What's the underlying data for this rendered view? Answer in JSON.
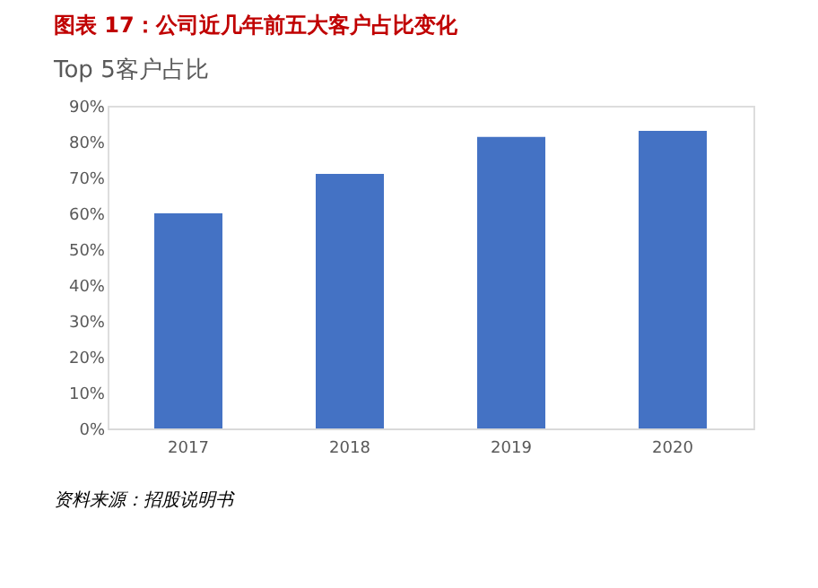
{
  "chart_data": {
    "type": "bar",
    "title": "图表 17：公司近几年前五大客户占比变化",
    "subtitle": "Top 5客户占比",
    "categories": [
      "2017",
      "2018",
      "2019",
      "2020"
    ],
    "values": [
      60,
      71,
      81.3,
      83
    ],
    "color": "#4472c4",
    "ylim": [
      0,
      90
    ],
    "yticks": [
      {
        "value": 0,
        "label": "0%"
      },
      {
        "value": 10,
        "label": "10%"
      },
      {
        "value": 20,
        "label": "20%"
      },
      {
        "value": 30,
        "label": "30%"
      },
      {
        "value": 40,
        "label": "40%"
      },
      {
        "value": 50,
        "label": "50%"
      },
      {
        "value": 60,
        "label": "60%"
      },
      {
        "value": 70,
        "label": "70%"
      },
      {
        "value": 80,
        "label": "80%"
      },
      {
        "value": 90,
        "label": "90%"
      }
    ],
    "grid": false,
    "annotations": [
      "资料来源：招股说明书"
    ]
  }
}
